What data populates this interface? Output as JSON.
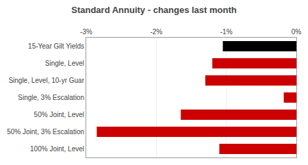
{
  "chart_data": {
    "type": "bar",
    "orientation": "horizontal",
    "title": "Standard Annuity - changes last month",
    "categories": [
      "15-Year Gilt Yields",
      "Single, Level",
      "Single, Level, 10-yr Guar",
      "Single, 3% Escalation",
      "50% Joint, Level",
      "50% Joint, 3% Escalation",
      "100% Joint, Level"
    ],
    "values": [
      -1.05,
      -1.2,
      -1.3,
      -0.18,
      -1.65,
      -2.85,
      -1.1
    ],
    "colors": [
      "#000000",
      "#cc0000",
      "#cc0000",
      "#cc0000",
      "#cc0000",
      "#cc0000",
      "#cc0000"
    ],
    "xlim": [
      -3.0,
      0.0
    ],
    "xticks": [
      {
        "value": -3.0,
        "label": "-3%"
      },
      {
        "value": -2.0,
        "label": "-2%"
      },
      {
        "value": -1.0,
        "label": "-1%"
      },
      {
        "value": 0.0,
        "label": "0%"
      }
    ],
    "grid": true
  }
}
